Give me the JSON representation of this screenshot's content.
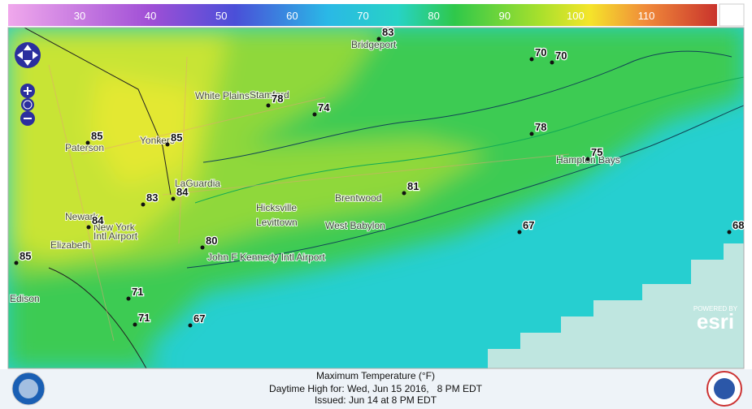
{
  "legend": {
    "ticks": [
      30,
      40,
      50,
      60,
      70,
      80,
      90,
      100,
      110
    ]
  },
  "stations": [
    83,
    70,
    70,
    78,
    74,
    78,
    75,
    85,
    85,
    83,
    84,
    81,
    84,
    80,
    67,
    68,
    85,
    71,
    71,
    67
  ],
  "places": [
    "Bridgeport",
    "White Plains",
    "Stamford",
    "Paterson",
    "Yonkers",
    "LaGuardia",
    "Newark",
    "New York",
    "Intl Airport",
    "Elizabeth",
    "Hicksville",
    "Levittown",
    "West Babylon",
    "Brentwood",
    "Hampton Bays",
    "John F Kennedy Intl Airport",
    "Edison"
  ],
  "attribution": {
    "powered": "POWERED BY",
    "brand": "esri"
  },
  "caption": {
    "title": "Maximum Temperature (°F)",
    "subtitle": "Daytime High for: Wed, Jun 15 2016,   8 PM EDT",
    "issued": "Issued: Jun 14 at 8 PM EDT"
  }
}
